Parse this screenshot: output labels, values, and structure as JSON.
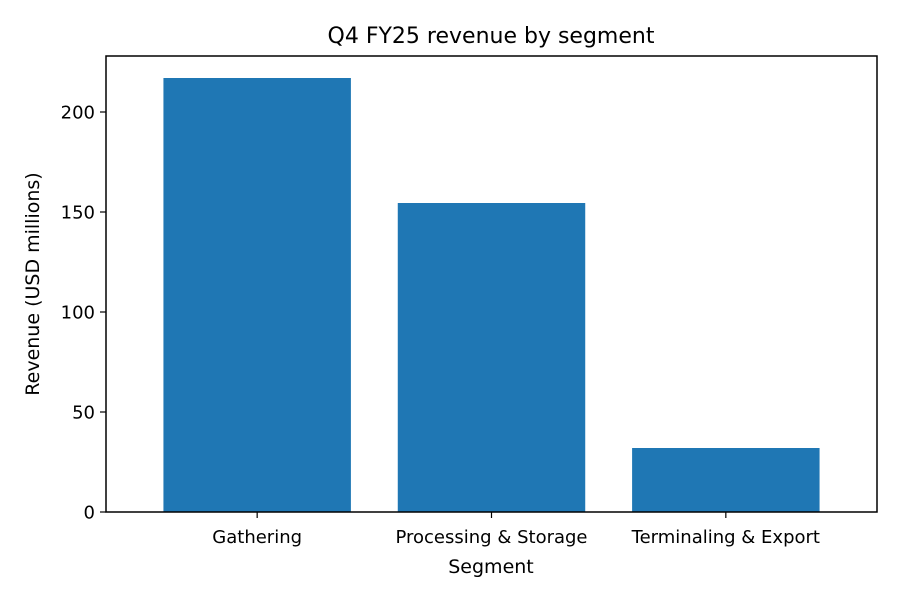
{
  "chart_data": {
    "type": "bar",
    "title": "Q4 FY25 revenue by segment",
    "xlabel": "Segment",
    "ylabel": "Revenue (USD millions)",
    "categories": [
      "Gathering",
      "Processing & Storage",
      "Terminaling & Export"
    ],
    "values": [
      217,
      154.5,
      32
    ],
    "ylim": [
      0,
      228
    ],
    "yticks": [
      "0",
      "50",
      "100",
      "150",
      "200"
    ],
    "grid": false,
    "legend": "none",
    "bar_color": "#1f77b4"
  }
}
